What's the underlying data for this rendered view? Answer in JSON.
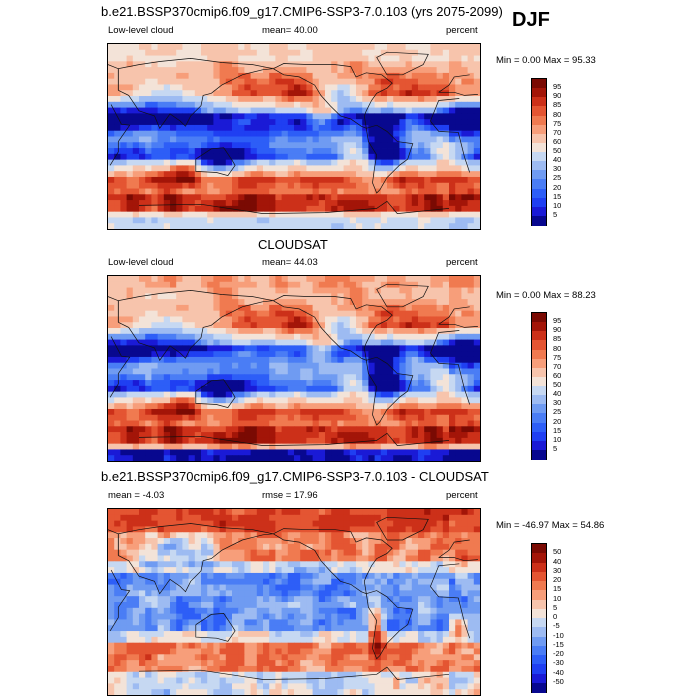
{
  "season": "DJF",
  "panels": [
    {
      "id": "model",
      "title": "b.e21.BSSP370cmip6.f09_g17.CMIP6-SSP3-7.0.103 (yrs 2075-2099)",
      "left_label": "Low-level cloud",
      "center_label": "mean=  40.00",
      "right_label": "percent",
      "minmax": "Min =   0.00 Max =  95.33",
      "colorbar_ticks": [
        "95",
        "90",
        "85",
        "80",
        "75",
        "70",
        "60",
        "50",
        "40",
        "30",
        "25",
        "20",
        "15",
        "10",
        "5"
      ]
    },
    {
      "id": "obs",
      "title": "CLOUDSAT",
      "left_label": "Low-level cloud",
      "center_label": "mean=  44.03",
      "right_label": "percent",
      "minmax": "Min =   0.00 Max =  88.23",
      "colorbar_ticks": [
        "95",
        "90",
        "85",
        "80",
        "75",
        "70",
        "60",
        "50",
        "40",
        "30",
        "25",
        "20",
        "15",
        "10",
        "5"
      ]
    },
    {
      "id": "diff",
      "title": "b.e21.BSSP370cmip6.f09_g17.CMIP6-SSP3-7.0.103 - CLOUDSAT",
      "left_label": "mean =  -4.03",
      "center_label": "rmse =  17.96",
      "right_label": "percent",
      "minmax": "Min = -46.97 Max =  54.86",
      "colorbar_ticks": [
        "50",
        "40",
        "30",
        "20",
        "15",
        "10",
        "5",
        "0",
        "-5",
        "-10",
        "-15",
        "-20",
        "-30",
        "-40",
        "-50"
      ]
    }
  ],
  "chart_data": [
    {
      "type": "heatmap",
      "title": "b.e21.BSSP370cmip6.f09_g17.CMIP6-SSP3-7.0.103 (yrs 2075-2099)",
      "variable": "Low-level cloud",
      "units": "percent",
      "mean": 40.0,
      "min": 0.0,
      "max": 95.33,
      "levels": [
        5,
        10,
        15,
        20,
        25,
        30,
        40,
        50,
        60,
        70,
        75,
        80,
        85,
        90,
        95
      ],
      "colors_low_to_high": [
        "#08088f",
        "#1a1ad6",
        "#1f3ff2",
        "#2d5ef7",
        "#4a7df5",
        "#6f9bf2",
        "#9dbbf2",
        "#c6d8f2",
        "#f3e3d8",
        "#f7c4ac",
        "#f79e7a",
        "#f07a50",
        "#e45532",
        "#cc3019",
        "#a31508",
        "#7a0a03"
      ]
    },
    {
      "type": "heatmap",
      "title": "CLOUDSAT",
      "variable": "Low-level cloud",
      "units": "percent",
      "mean": 44.03,
      "min": 0.0,
      "max": 88.23,
      "levels": [
        5,
        10,
        15,
        20,
        25,
        30,
        40,
        50,
        60,
        70,
        75,
        80,
        85,
        90,
        95
      ],
      "colors_low_to_high": [
        "#08088f",
        "#1a1ad6",
        "#1f3ff2",
        "#2d5ef7",
        "#4a7df5",
        "#6f9bf2",
        "#9dbbf2",
        "#c6d8f2",
        "#f3e3d8",
        "#f7c4ac",
        "#f79e7a",
        "#f07a50",
        "#e45532",
        "#cc3019",
        "#a31508",
        "#7a0a03"
      ]
    },
    {
      "type": "heatmap",
      "title": "b.e21.BSSP370cmip6.f09_g17.CMIP6-SSP3-7.0.103 - CLOUDSAT",
      "units": "percent",
      "mean": -4.03,
      "rmse": 17.96,
      "min": -46.97,
      "max": 54.86,
      "levels": [
        -50,
        -40,
        -30,
        -20,
        -15,
        -10,
        -5,
        0,
        5,
        10,
        15,
        20,
        30,
        40,
        50
      ],
      "colors_low_to_high": [
        "#08088f",
        "#1a1ad6",
        "#1f3ff2",
        "#2d5ef7",
        "#4a7df5",
        "#6f9bf2",
        "#9dbbf2",
        "#c6d8f2",
        "#f3e3d8",
        "#f7c4ac",
        "#f79e7a",
        "#f07a50",
        "#e45532",
        "#cc3019",
        "#a31508",
        "#7a0a03"
      ]
    }
  ]
}
